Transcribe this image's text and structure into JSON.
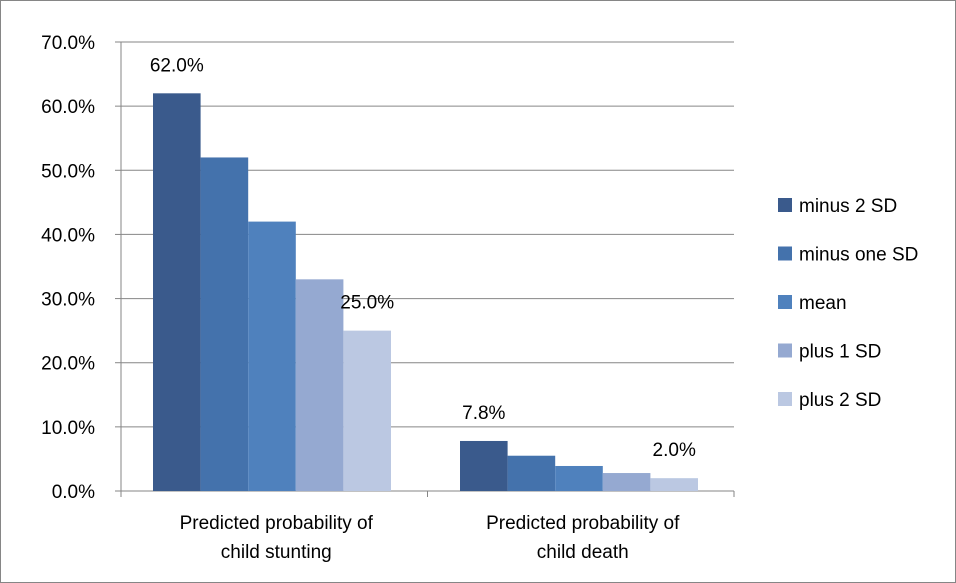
{
  "chart_data": {
    "type": "bar",
    "categories": [
      [
        "Predicted probability of",
        "child stunting"
      ],
      [
        "Predicted probability of",
        "child death"
      ]
    ],
    "series": [
      {
        "name": "minus 2 SD",
        "color": "#3A5A8C",
        "values": [
          62.0,
          7.8
        ]
      },
      {
        "name": "minus one SD",
        "color": "#4472AC",
        "values": [
          52.0,
          5.5
        ]
      },
      {
        "name": "mean",
        "color": "#4F81BD",
        "values": [
          42.0,
          3.9
        ]
      },
      {
        "name": "plus 1 SD",
        "color": "#95A9D1",
        "values": [
          33.0,
          2.8
        ]
      },
      {
        "name": "plus 2 SD",
        "color": "#BBC8E2",
        "values": [
          25.0,
          2.0
        ]
      }
    ],
    "data_labels": [
      {
        "series": 0,
        "category": 0,
        "text": "62.0%"
      },
      {
        "series": 4,
        "category": 0,
        "text": "25.0%"
      },
      {
        "series": 0,
        "category": 1,
        "text": "7.8%"
      },
      {
        "series": 4,
        "category": 1,
        "text": "2.0%"
      }
    ],
    "yticks": [
      "0.0%",
      "10.0%",
      "20.0%",
      "30.0%",
      "40.0%",
      "50.0%",
      "60.0%",
      "70.0%"
    ],
    "ylim": [
      0,
      70
    ],
    "grid": true,
    "legend_position": "right",
    "title": "",
    "xlabel": "",
    "ylabel": ""
  }
}
